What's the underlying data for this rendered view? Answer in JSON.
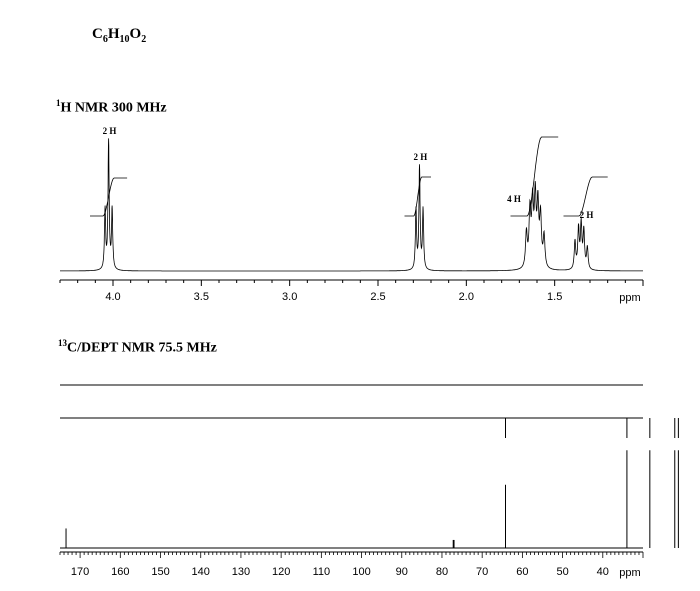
{
  "formula": {
    "base_c": "C",
    "sub_c": "6",
    "base_h": "H",
    "sub_h": "10",
    "base_o": "O",
    "sub_o": "2"
  },
  "chart_data": [
    {
      "type": "line",
      "title_sup": "1",
      "title": "H NMR 300 MHz",
      "xlabel": "ppm",
      "xlim": [
        4.3,
        1.0
      ],
      "x_reversed": true,
      "ticks": [
        4.0,
        3.5,
        3.0,
        2.5,
        2.0,
        1.5
      ],
      "tick_labels": [
        "4.0",
        "3.5",
        "3.0",
        "2.5",
        "2.0",
        "1.5"
      ],
      "peaks": [
        {
          "shift": 4.02,
          "multiplicity": "triplet",
          "label": "2 H"
        },
        {
          "shift": 2.26,
          "multiplicity": "triplet",
          "label": "2 H"
        },
        {
          "shift": 1.61,
          "multiplicity": "multiplet",
          "label": "4 H"
        },
        {
          "shift": 1.35,
          "multiplicity": "multiplet",
          "label": "2 H"
        }
      ]
    },
    {
      "type": "bar",
      "title_sup": "13",
      "title": "C/DEPT NMR 75.5 MHz",
      "xlabel": "ppm",
      "xlim": [
        175,
        30
      ],
      "x_reversed": true,
      "ticks": [
        170,
        160,
        150,
        140,
        130,
        120,
        110,
        100,
        90,
        80,
        70,
        60,
        50,
        40
      ],
      "tick_labels": [
        "170",
        "160",
        "150",
        "140",
        "130",
        "120",
        "110",
        "100",
        "90",
        "80",
        "70",
        "60",
        "50",
        "40"
      ],
      "peaks_13c": [
        {
          "shift": 173.5,
          "rel_height": 0.17
        },
        {
          "shift": 77.2,
          "rel_height": 0.07
        },
        {
          "shift": 77.0,
          "rel_height": 0.07
        },
        {
          "shift": 64.2,
          "rel_height": 0.55
        },
        {
          "shift": 34.0,
          "rel_height": 0.85
        },
        {
          "shift": 28.3,
          "rel_height": 0.85
        },
        {
          "shift": 22.1,
          "rel_height": 0.85
        },
        {
          "shift": 21.2,
          "rel_height": 0.85
        }
      ],
      "dept_90_peaks": [],
      "dept_135_peaks": [
        {
          "shift": 64.2,
          "direction": "down"
        },
        {
          "shift": 34.0,
          "direction": "down"
        },
        {
          "shift": 28.3,
          "direction": "down"
        },
        {
          "shift": 22.1,
          "direction": "down"
        },
        {
          "shift": 21.2,
          "direction": "down"
        }
      ]
    }
  ]
}
